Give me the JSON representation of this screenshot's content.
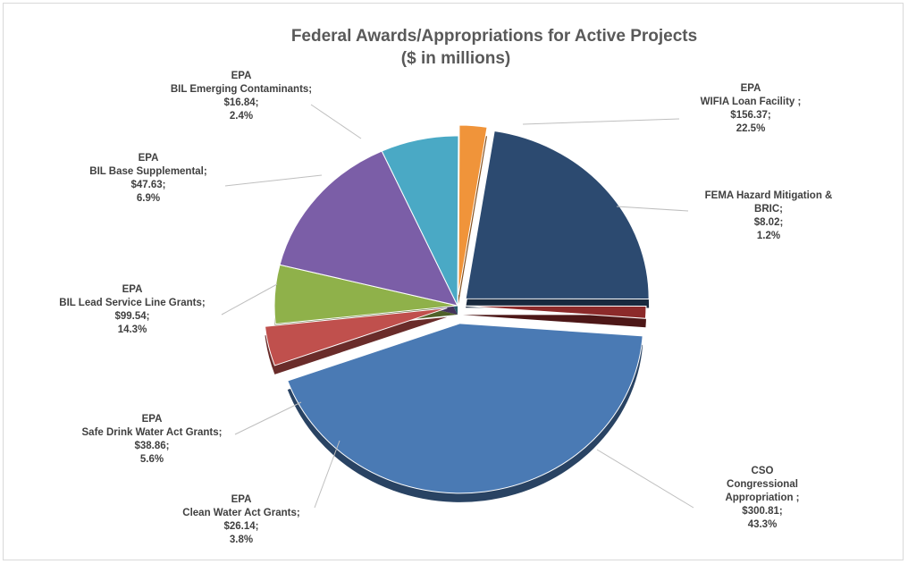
{
  "chart_data": {
    "type": "pie",
    "title": "Federal Awards/Appropriations for Active Projects",
    "subtitle": "($ in millions)",
    "slices": [
      {
        "id": "wifia",
        "label_lines": [
          "EPA",
          "WIFIA Loan Facility ;",
          "$156.37;",
          "22.5%"
        ],
        "value": 156.37,
        "percent": 22.5,
        "color": "#2c4a70"
      },
      {
        "id": "fema",
        "label_lines": [
          "FEMA Hazard Mitigation &",
          "BRIC;",
          "$8.02;",
          "1.2%"
        ],
        "value": 8.02,
        "percent": 1.2,
        "color": "#8c2a2a"
      },
      {
        "id": "cso",
        "label_lines": [
          "CSO",
          "Congressional",
          "Appropriation ;",
          "$300.81;",
          "43.3%"
        ],
        "value": 300.81,
        "percent": 43.3,
        "color": "#4a7ab4"
      },
      {
        "id": "cwa",
        "label_lines": [
          "EPA",
          "Clean Water Act Grants;",
          "$26.14;",
          "3.8%"
        ],
        "value": 26.14,
        "percent": 3.8,
        "color": "#c0504d"
      },
      {
        "id": "sdwa",
        "label_lines": [
          "EPA",
          "Safe Drink Water Act Grants;",
          "$38.86;",
          "5.6%"
        ],
        "value": 38.86,
        "percent": 5.6,
        "color": "#8fb14a"
      },
      {
        "id": "lead",
        "label_lines": [
          "EPA",
          "BIL Lead Service Line Grants;",
          "$99.54;",
          "14.3%"
        ],
        "value": 99.54,
        "percent": 14.3,
        "color": "#7b5ea7"
      },
      {
        "id": "base",
        "label_lines": [
          "EPA",
          "BIL Base Supplemental;",
          "$47.63;",
          "6.9%"
        ],
        "value": 47.63,
        "percent": 6.9,
        "color": "#4aa9c5"
      },
      {
        "id": "emerging",
        "label_lines": [
          "EPA",
          "BIL Emerging  Contaminants;",
          "$16.84;",
          "2.4%"
        ],
        "value": 16.84,
        "percent": 2.4,
        "color": "#f0943a"
      }
    ]
  }
}
